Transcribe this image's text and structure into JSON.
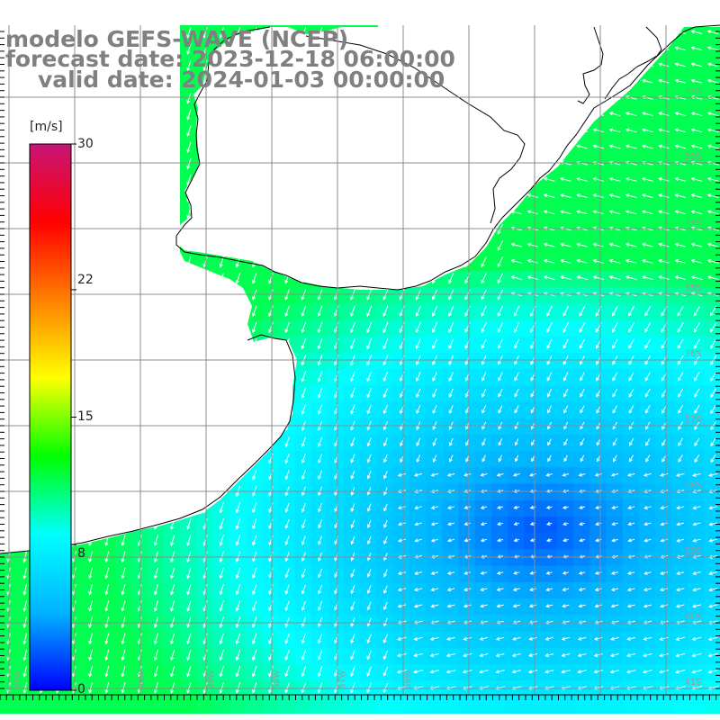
{
  "title": {
    "line1": "modelo GEFS-WAVE (NCEP)",
    "line2": "forecast date: 2023-12-18 06:00:00",
    "line3": "valid date: 2024-01-03 00:00:00"
  },
  "colorbar": {
    "unit_label": "[m/s]",
    "ticks": [
      {
        "label": "30",
        "value": 30
      },
      {
        "label": "22",
        "value": 22
      },
      {
        "label": "15",
        "value": 15
      },
      {
        "label": "8",
        "value": 8
      },
      {
        "label": "0",
        "value": 0
      }
    ],
    "range": [
      0,
      30
    ],
    "colors": [
      "#0000ff",
      "#00b4ff",
      "#00ffff",
      "#00ff00",
      "#ffff00",
      "#ff8000",
      "#ff0000",
      "#c81478"
    ]
  },
  "lat_labels": [
    "32S",
    "33S",
    "34S",
    "35S",
    "36S",
    "37S",
    "38S",
    "39S",
    "40S",
    "41S"
  ],
  "lon_labels": [
    "61W",
    "60W",
    "59W",
    "58W",
    "57W",
    "56W"
  ],
  "legend_colors": {
    "land": "#ffffff",
    "coast": "#000000",
    "grid": "#8c8c8c",
    "arrow": "#ffffff"
  }
}
